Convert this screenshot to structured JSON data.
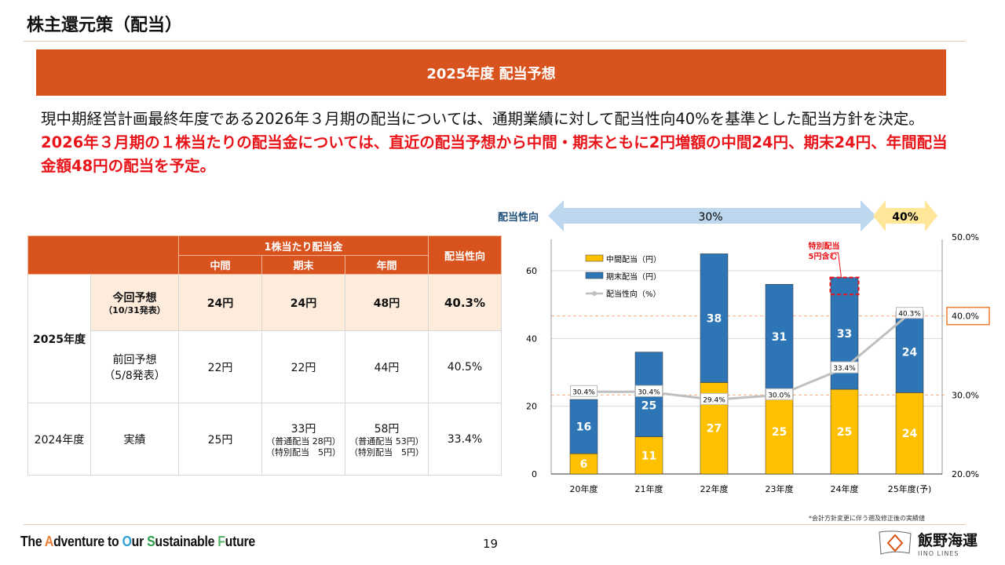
{
  "title": "株主還元策（配当）",
  "banner": "2025年度 配当予想",
  "description": {
    "normal": "現中期経営計画最終年度である2026年３月期の配当については、通期業績に対して配当性向40%を基準とした配当方針を決定。",
    "highlight": "2026年３月期の１株当たりの配当金については、直近の配当予想から中間・期末ともに2円増額の中間24円、期末24円、年間配当金額48円の配当を予定。"
  },
  "table": {
    "header_group": "1株当たり配当金",
    "header_payout": "配当性向",
    "cols": [
      "中間",
      "期末",
      "年間"
    ],
    "fy2025": "2025年度",
    "fy2024": "2024年度",
    "rows": [
      {
        "label": "今回予想",
        "sublabel": "（10/31発表）",
        "interim": "24円",
        "year_end": "24円",
        "annual": "48円",
        "payout": "40.3%"
      },
      {
        "label": "前回予想",
        "sublabel": "（5/8発表）",
        "interim": "22円",
        "year_end": "22円",
        "annual": "44円",
        "payout": "40.5%"
      },
      {
        "label": "実績",
        "interim": "25円",
        "year_end": "33円",
        "year_end_note1": "（普通配当 28円）",
        "year_end_note2": "（特別配当　5円）",
        "annual": "58円",
        "annual_note1": "（普通配当 53円）",
        "annual_note2": "（特別配当　5円）",
        "payout": "33.4%"
      }
    ]
  },
  "arrow": {
    "label": "配当性向",
    "left": "30%",
    "right": "40%"
  },
  "chart_data": {
    "type": "bar",
    "categories": [
      "20年度",
      "21年度",
      "22年度",
      "23年度",
      "24年度",
      "25年度(予)"
    ],
    "series": [
      {
        "name": "中間配当（円）",
        "values": [
          6,
          11,
          27,
          25,
          25,
          24
        ],
        "color": "#ffc000"
      },
      {
        "name": "期末配当（円）",
        "values": [
          16,
          25,
          38,
          31,
          33,
          24
        ],
        "color": "#2e75b6"
      },
      {
        "name": "配当性向（%）",
        "values": [
          30.4,
          30.4,
          29.4,
          30.0,
          33.4,
          40.3
        ],
        "labels": [
          "30.4%",
          "30.4%",
          "29.4%",
          "30.0%",
          "33.4%",
          "40.3%"
        ],
        "color": "#bfbfbf",
        "axis": "right"
      }
    ],
    "ylim": [
      0,
      68
    ],
    "yticks": [
      "0",
      "20",
      "40",
      "60"
    ],
    "ytick_values": [
      0,
      20,
      40,
      60
    ],
    "y2lim": [
      20,
      50
    ],
    "y2ticks": [
      "20.0%",
      "30.0%",
      "40.0%",
      "50.0%"
    ],
    "y2tick_values": [
      20,
      30,
      40,
      50
    ],
    "reference_lines": [
      30,
      40
    ],
    "annotation": "特別配当\n5円含む",
    "annotation_lines": [
      "特別配当",
      "5円含む"
    ],
    "legend": "top-left"
  },
  "footnote": "*会計方針変更に伴う遡及修正後の実績値",
  "footer": {
    "slogan": [
      {
        "t": "The "
      },
      {
        "t": "A",
        "c": "#ed7d31"
      },
      {
        "t": "dventure to "
      },
      {
        "t": "O",
        "c": "#2f9fd8"
      },
      {
        "t": "ur "
      },
      {
        "t": "S",
        "c": "#2e9e4c"
      },
      {
        "t": "ustainable "
      },
      {
        "t": "F",
        "c": "#5bb36b"
      },
      {
        "t": "uture"
      }
    ],
    "page": "19",
    "company": "飯野海運",
    "company_en": "IINO LINES"
  }
}
